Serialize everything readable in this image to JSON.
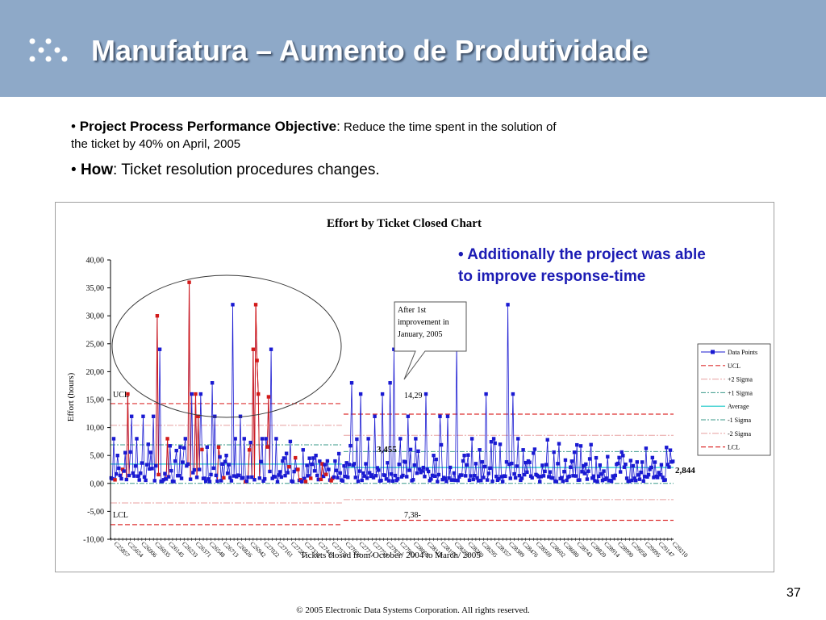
{
  "slide": {
    "title": "Manufatura – Aumento de Produtividade",
    "bullet1_label": "Project Process Performance Objective",
    "bullet1_colon": ":",
    "bullet1_text_a": " Reduce the time spent in the solution of",
    "bullet1_text_b": "the ticket by 40% on April, 2005",
    "bullet2_label": "How",
    "bullet2_text": ": Ticket resolution procedures changes.",
    "note_line1": "Additionally the project was able",
    "note_line2": "to improve response-time",
    "bullet_char": "•",
    "page_number": "37",
    "footer": "© 2005 Electronic Data Systems Corporation. All rights reserved."
  },
  "colors": {
    "header_bg": "#8ea9c8",
    "series_blue": "#1a1ad2",
    "series_red": "#d21a1a",
    "average": "#19c8c8",
    "control_red": "#dd3030",
    "sigma_pink": "#e8a0a0",
    "sigma_teal": "#3a9a8a",
    "note_blue": "#1c1cb4"
  },
  "chart_data": {
    "type": "line",
    "title": "Effort by Ticket Closed Chart",
    "xlabel": "Tickets closed from October/ 2004 to March/ 2005",
    "ylabel": "Effort (hours)",
    "ylim": [
      -10,
      40
    ],
    "yticks": [
      "40,00",
      "35,00",
      "30,00",
      "25,00",
      "20,00",
      "15,00",
      "10,00",
      "5,00",
      "0,00",
      "-5,00",
      "-10,00"
    ],
    "n_points": 440,
    "break_index": 181,
    "legend": [
      "Data Points",
      "UCL",
      "+2 Sigma",
      "+1 Sigma",
      "Average",
      "-1 Sigma",
      "-2 Sigma",
      "LCL"
    ],
    "legend_position": "right",
    "phase1": {
      "UCL": 14.29,
      "plus2": 10.4,
      "plus1": 6.9,
      "average": 3.455,
      "minus1": 0.0,
      "minus2": -3.5,
      "LCL": -7.38
    },
    "phase2": {
      "UCL": 12.4,
      "plus2": 8.6,
      "plus1": 5.7,
      "average": 2.844,
      "minus1": 0.0,
      "minus2": -2.9,
      "LCL": -6.6
    },
    "annotations": {
      "callout": "After 1st improvement in January, 2005",
      "ucl_label": "UCL",
      "lcl_label": "LCL",
      "ucl_value": "14,29",
      "lcl_value": "7,38-",
      "avg1": "3,455",
      "avg2": "2,844"
    },
    "peaks": [
      {
        "i": 2,
        "v": 8,
        "red": false
      },
      {
        "i": 5,
        "v": 5,
        "red": false
      },
      {
        "i": 9,
        "v": 2.5,
        "red": true
      },
      {
        "i": 13,
        "v": 16,
        "red": true
      },
      {
        "i": 16,
        "v": 12,
        "red": false
      },
      {
        "i": 20,
        "v": 8,
        "red": false
      },
      {
        "i": 25,
        "v": 12,
        "red": false
      },
      {
        "i": 29,
        "v": 7,
        "red": false
      },
      {
        "i": 33,
        "v": 12,
        "red": false
      },
      {
        "i": 36,
        "v": 30,
        "red": true
      },
      {
        "i": 38,
        "v": 24,
        "red": false
      },
      {
        "i": 44,
        "v": 8,
        "red": true
      },
      {
        "i": 50,
        "v": 4,
        "red": false
      },
      {
        "i": 54,
        "v": 6.5,
        "red": false
      },
      {
        "i": 58,
        "v": 8,
        "red": false
      },
      {
        "i": 61,
        "v": 36,
        "red": true
      },
      {
        "i": 63,
        "v": 16,
        "red": false
      },
      {
        "i": 66,
        "v": 16,
        "red": true
      },
      {
        "i": 68,
        "v": 12,
        "red": true
      },
      {
        "i": 70,
        "v": 16,
        "red": false
      },
      {
        "i": 75,
        "v": 6.5,
        "red": false
      },
      {
        "i": 79,
        "v": 18,
        "red": false
      },
      {
        "i": 81,
        "v": 12,
        "red": false
      },
      {
        "i": 84,
        "v": 6.5,
        "red": true
      },
      {
        "i": 90,
        "v": 5,
        "red": false
      },
      {
        "i": 95,
        "v": 32,
        "red": false
      },
      {
        "i": 97,
        "v": 8,
        "red": false
      },
      {
        "i": 101,
        "v": 12,
        "red": false
      },
      {
        "i": 104,
        "v": 8,
        "red": false
      },
      {
        "i": 108,
        "v": 6,
        "red": true
      },
      {
        "i": 111,
        "v": 24,
        "red": true
      },
      {
        "i": 113,
        "v": 32,
        "red": true
      },
      {
        "i": 114,
        "v": 22,
        "red": true
      },
      {
        "i": 115,
        "v": 16,
        "red": true
      },
      {
        "i": 118,
        "v": 8,
        "red": false
      },
      {
        "i": 121,
        "v": 8,
        "red": false
      },
      {
        "i": 123,
        "v": 15.5,
        "red": true
      },
      {
        "i": 125,
        "v": 24,
        "red": false
      },
      {
        "i": 129,
        "v": 8,
        "red": false
      },
      {
        "i": 134,
        "v": 4,
        "red": false
      },
      {
        "i": 140,
        "v": 7.5,
        "red": false
      },
      {
        "i": 146,
        "v": 2.5,
        "red": true
      },
      {
        "i": 150,
        "v": 6,
        "red": false
      },
      {
        "i": 155,
        "v": 4.5,
        "red": false
      },
      {
        "i": 160,
        "v": 5,
        "red": false
      },
      {
        "i": 165,
        "v": 3.5,
        "red": true
      },
      {
        "i": 170,
        "v": 2.5,
        "red": false
      },
      {
        "i": 175,
        "v": 4,
        "red": false
      },
      {
        "i": 188,
        "v": 18,
        "red": false
      },
      {
        "i": 195,
        "v": 16,
        "red": false
      },
      {
        "i": 201,
        "v": 8,
        "red": false
      },
      {
        "i": 206,
        "v": 12,
        "red": false
      },
      {
        "i": 212,
        "v": 16,
        "red": false
      },
      {
        "i": 218,
        "v": 18,
        "red": false
      },
      {
        "i": 221,
        "v": 24,
        "red": false
      },
      {
        "i": 226,
        "v": 8,
        "red": false
      },
      {
        "i": 232,
        "v": 12,
        "red": false
      },
      {
        "i": 238,
        "v": 8,
        "red": false
      },
      {
        "i": 246,
        "v": 16,
        "red": false
      },
      {
        "i": 252,
        "v": 5,
        "red": false
      },
      {
        "i": 257,
        "v": 12,
        "red": false
      },
      {
        "i": 263,
        "v": 12,
        "red": false
      },
      {
        "i": 270,
        "v": 25,
        "red": false
      },
      {
        "i": 276,
        "v": 5,
        "red": false
      },
      {
        "i": 282,
        "v": 8,
        "red": false
      },
      {
        "i": 288,
        "v": 6,
        "red": false
      },
      {
        "i": 293,
        "v": 16,
        "red": false
      },
      {
        "i": 299,
        "v": 8,
        "red": false
      },
      {
        "i": 304,
        "v": 7,
        "red": false
      },
      {
        "i": 310,
        "v": 32,
        "red": false
      },
      {
        "i": 314,
        "v": 16,
        "red": false
      },
      {
        "i": 318,
        "v": 8,
        "red": false
      },
      {
        "i": 322,
        "v": 6,
        "red": false
      },
      {
        "i": 326,
        "v": 4,
        "red": false
      }
    ],
    "x_tick_labels": [
      "C25857",
      "C25654",
      "C26006",
      "C26035",
      "C26145",
      "C26233",
      "C26371",
      "C26548",
      "C26713",
      "C26826",
      "C26942",
      "C27022",
      "C27161",
      "C27253",
      "C27330",
      "C27449",
      "C27575",
      "C27606",
      "C27711",
      "C27759",
      "C27877",
      "C27963",
      "C28065",
      "C28119",
      "C28192",
      "C28256",
      "C28280",
      "C28295",
      "C28357",
      "C28389",
      "C28476",
      "C28569",
      "C28602",
      "C28680",
      "C28743",
      "C28820",
      "C28914",
      "C28990",
      "C29058",
      "C29095",
      "C29147",
      "C29210"
    ]
  }
}
